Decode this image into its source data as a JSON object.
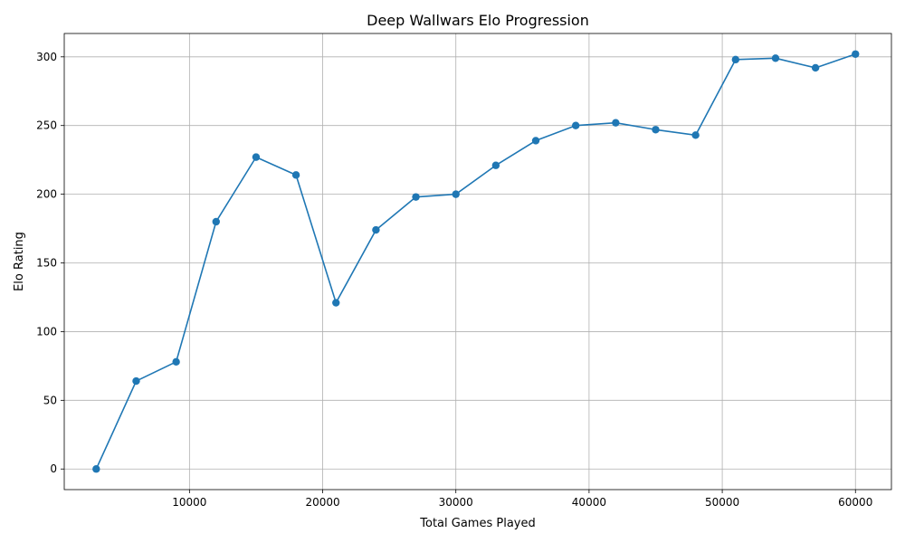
{
  "chart_data": {
    "type": "line",
    "title": "Deep Wallwars Elo Progression",
    "xlabel": "Total Games Played",
    "ylabel": "Elo Rating",
    "xlim": [
      600,
      62700
    ],
    "ylim": [
      -15,
      317
    ],
    "xticks": [
      10000,
      20000,
      30000,
      40000,
      50000,
      60000
    ],
    "yticks": [
      0,
      50,
      100,
      150,
      200,
      250,
      300
    ],
    "grid": true,
    "marker": "circle",
    "color": "#1f77b4",
    "x": [
      3000,
      6000,
      9000,
      12000,
      15000,
      18000,
      21000,
      24000,
      27000,
      30000,
      33000,
      36000,
      39000,
      42000,
      45000,
      48000,
      51000,
      54000,
      57000,
      60000
    ],
    "values": [
      0,
      64,
      78,
      180,
      227,
      214,
      121,
      174,
      198,
      200,
      221,
      239,
      250,
      252,
      247,
      243,
      298,
      299,
      292,
      302
    ]
  }
}
